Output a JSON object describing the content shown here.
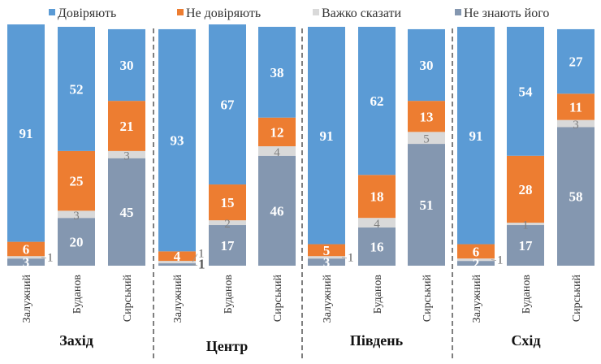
{
  "chart_data": {
    "type": "bar",
    "stacked": true,
    "legend_position": "top",
    "ylim": [
      0,
      100
    ],
    "grid": false,
    "series": [
      {
        "name": "Довіряють",
        "color": "#5B9BD5"
      },
      {
        "name": "Не довіряють",
        "color": "#ED7D31"
      },
      {
        "name": "Важко сказати",
        "color": "#D9D9D9"
      },
      {
        "name": "Не знають його",
        "color": "#8497B0"
      }
    ],
    "groups": [
      {
        "label": "Захід",
        "bars": [
          {
            "category": "Залужний",
            "values": [
              91,
              6,
              1,
              3
            ]
          },
          {
            "category": "Буданов",
            "values": [
              52,
              25,
              3,
              20
            ]
          },
          {
            "category": "Сирський",
            "values": [
              30,
              21,
              3,
              45
            ]
          }
        ]
      },
      {
        "label": "Центр",
        "bars": [
          {
            "category": "Залужний",
            "values": [
              93,
              4,
              1,
              1
            ]
          },
          {
            "category": "Буданов",
            "values": [
              67,
              15,
              2,
              17
            ]
          },
          {
            "category": "Сирський",
            "values": [
              38,
              12,
              4,
              46
            ]
          }
        ]
      },
      {
        "label": "Південь",
        "bars": [
          {
            "category": "Залужний",
            "values": [
              91,
              5,
              1,
              3
            ]
          },
          {
            "category": "Буданов",
            "values": [
              62,
              18,
              4,
              16
            ]
          },
          {
            "category": "Сирський",
            "values": [
              30,
              13,
              5,
              51
            ]
          }
        ]
      },
      {
        "label": "Схід",
        "bars": [
          {
            "category": "Залужний",
            "values": [
              91,
              6,
              1,
              2
            ]
          },
          {
            "category": "Буданов",
            "values": [
              54,
              28,
              1,
              17
            ]
          },
          {
            "category": "Сирський",
            "values": [
              27,
              11,
              3,
              58
            ]
          }
        ]
      }
    ]
  }
}
